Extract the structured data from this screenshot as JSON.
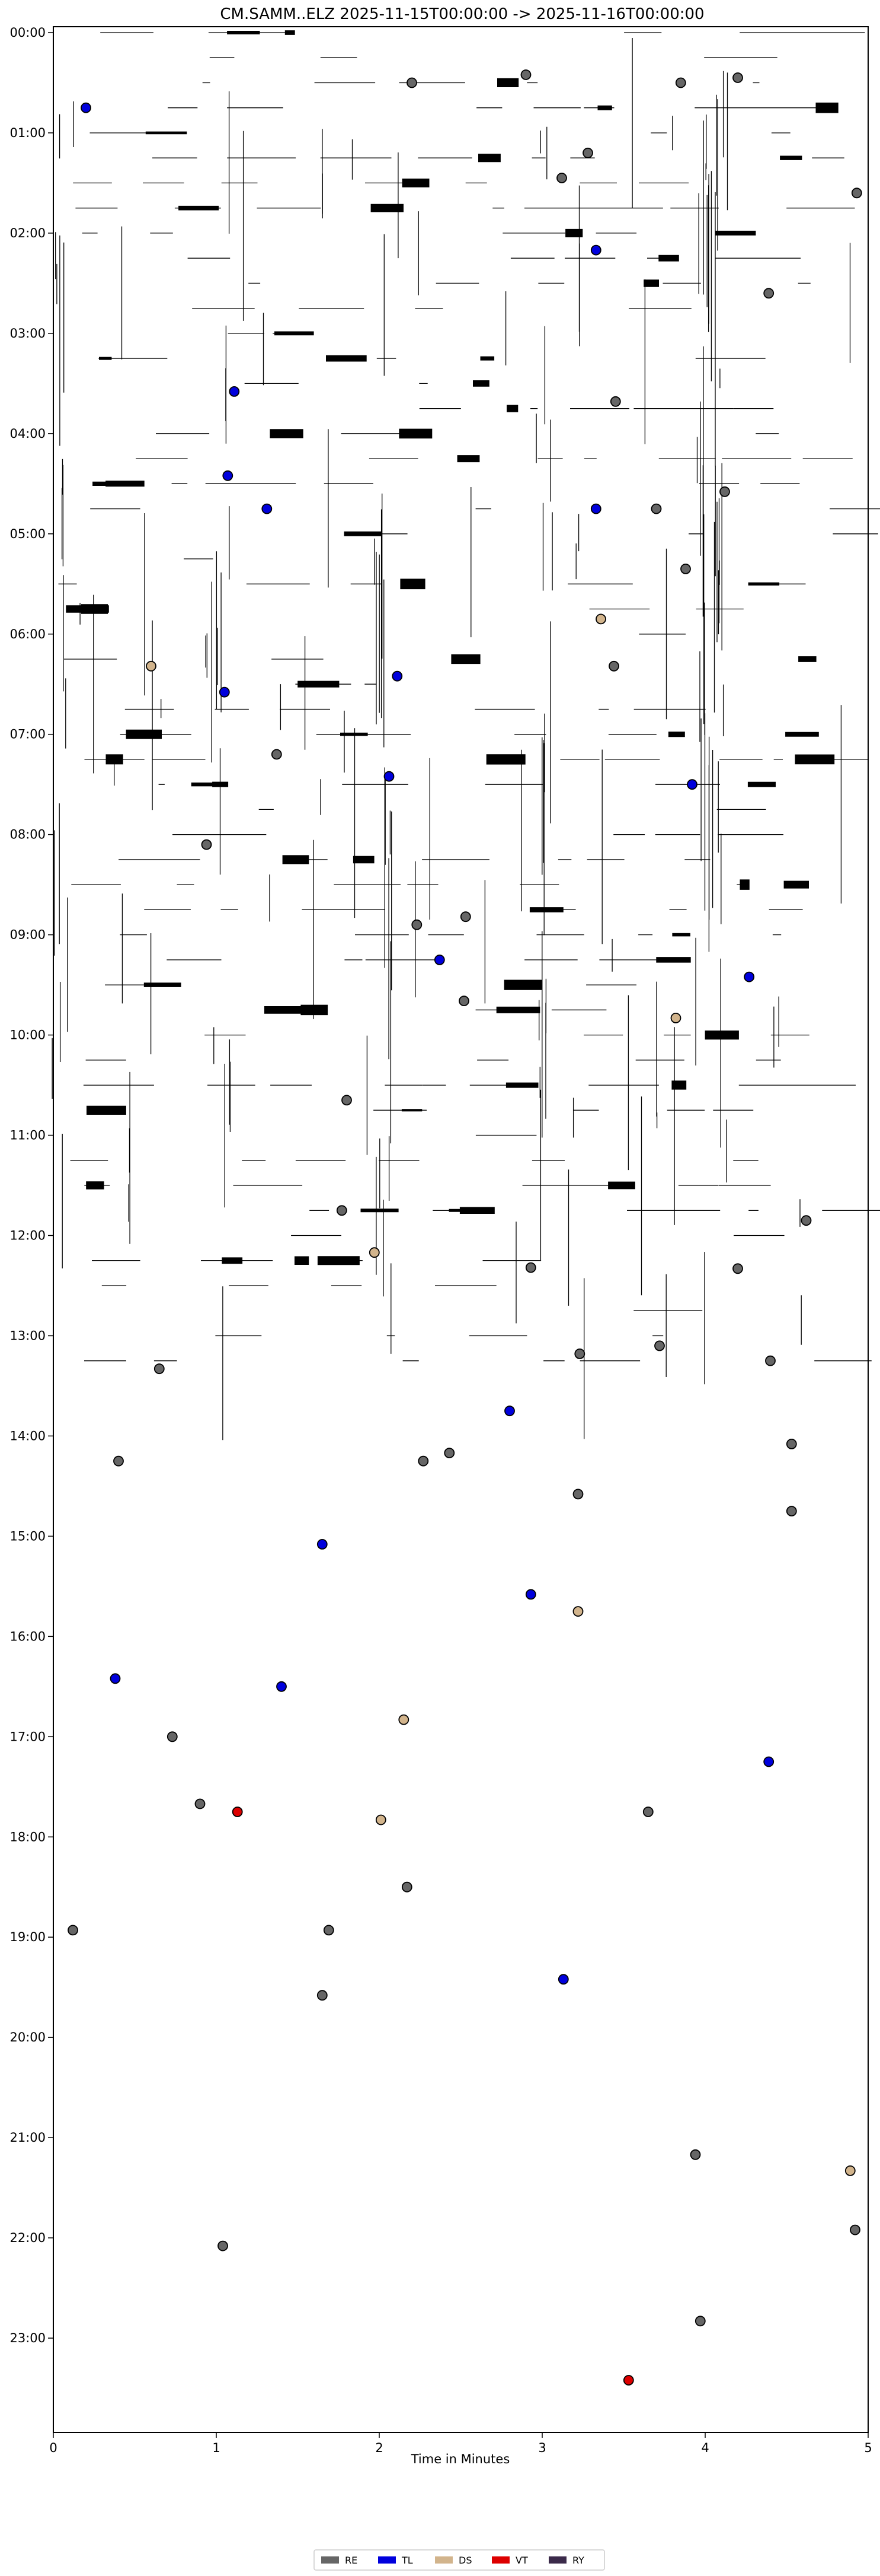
{
  "chart_data": {
    "type": "scatter",
    "title": "CM.SAMM..ELZ  2025-11-15T00:00:00 -> 2025-11-16T00:00:00",
    "xlabel": "Time in Minutes",
    "ylabel": "",
    "xlim": [
      0,
      5
    ],
    "ylim_hours": [
      0,
      24
    ],
    "y_inverted": true,
    "x_ticks": [
      "0",
      "1",
      "2",
      "3",
      "4",
      "5"
    ],
    "y_ticks": [
      "00:00",
      "01:00",
      "02:00",
      "03:00",
      "04:00",
      "05:00",
      "06:00",
      "07:00",
      "08:00",
      "09:00",
      "10:00",
      "11:00",
      "12:00",
      "13:00",
      "14:00",
      "15:00",
      "16:00",
      "17:00",
      "18:00",
      "19:00",
      "20:00",
      "21:00",
      "22:00",
      "23:00"
    ],
    "legend_position": "bottom-center",
    "legend": [
      {
        "label": "RE",
        "color": "#666666"
      },
      {
        "label": "TL",
        "color": "#0000dd"
      },
      {
        "label": "DS",
        "color": "#d2b48c"
      },
      {
        "label": "VT",
        "color": "#dd0000"
      },
      {
        "label": "RY",
        "color": "#3b2a4a"
      }
    ],
    "series": [
      {
        "name": "RE",
        "color": "#666666",
        "points": [
          {
            "x": 2.2,
            "y": 0.5
          },
          {
            "x": 2.9,
            "y": 0.42
          },
          {
            "x": 3.85,
            "y": 0.5
          },
          {
            "x": 4.2,
            "y": 0.45
          },
          {
            "x": 3.12,
            "y": 1.45
          },
          {
            "x": 3.28,
            "y": 1.2
          },
          {
            "x": 4.93,
            "y": 1.6
          },
          {
            "x": 4.39,
            "y": 2.6
          },
          {
            "x": 3.45,
            "y": 3.68
          },
          {
            "x": 4.12,
            "y": 4.58
          },
          {
            "x": 3.7,
            "y": 4.75
          },
          {
            "x": 3.88,
            "y": 5.35
          },
          {
            "x": 3.44,
            "y": 6.32
          },
          {
            "x": 1.37,
            "y": 7.2
          },
          {
            "x": 0.94,
            "y": 8.1
          },
          {
            "x": 2.23,
            "y": 8.9
          },
          {
            "x": 2.53,
            "y": 8.82
          },
          {
            "x": 2.52,
            "y": 9.66
          },
          {
            "x": 1.8,
            "y": 10.65
          },
          {
            "x": 1.77,
            "y": 11.75
          },
          {
            "x": 2.93,
            "y": 12.32
          },
          {
            "x": 4.62,
            "y": 11.85
          },
          {
            "x": 4.2,
            "y": 12.33
          },
          {
            "x": 0.65,
            "y": 13.33
          },
          {
            "x": 3.23,
            "y": 13.18
          },
          {
            "x": 3.72,
            "y": 13.1
          },
          {
            "x": 4.4,
            "y": 13.25
          },
          {
            "x": 0.4,
            "y": 14.25
          },
          {
            "x": 2.27,
            "y": 14.25
          },
          {
            "x": 2.43,
            "y": 14.17
          },
          {
            "x": 3.22,
            "y": 14.58
          },
          {
            "x": 4.53,
            "y": 14.08
          },
          {
            "x": 4.53,
            "y": 14.75
          },
          {
            "x": 0.73,
            "y": 17.0
          },
          {
            "x": 0.9,
            "y": 17.67
          },
          {
            "x": 3.65,
            "y": 17.75
          },
          {
            "x": 2.17,
            "y": 18.5
          },
          {
            "x": 0.12,
            "y": 18.93
          },
          {
            "x": 1.69,
            "y": 18.93
          },
          {
            "x": 1.65,
            "y": 19.58
          },
          {
            "x": 3.94,
            "y": 21.17
          },
          {
            "x": 4.92,
            "y": 21.92
          },
          {
            "x": 1.04,
            "y": 22.08
          },
          {
            "x": 3.97,
            "y": 22.83
          }
        ]
      },
      {
        "name": "TL",
        "color": "#0000dd",
        "points": [
          {
            "x": 0.2,
            "y": 0.75
          },
          {
            "x": 3.33,
            "y": 2.17
          },
          {
            "x": 1.11,
            "y": 3.58
          },
          {
            "x": 1.07,
            "y": 4.42
          },
          {
            "x": 1.31,
            "y": 4.75
          },
          {
            "x": 3.33,
            "y": 4.75
          },
          {
            "x": 2.11,
            "y": 6.42
          },
          {
            "x": 1.05,
            "y": 6.58
          },
          {
            "x": 2.06,
            "y": 7.42
          },
          {
            "x": 3.92,
            "y": 7.5
          },
          {
            "x": 2.37,
            "y": 9.25
          },
          {
            "x": 4.27,
            "y": 9.42
          },
          {
            "x": 2.8,
            "y": 13.75
          },
          {
            "x": 1.65,
            "y": 15.08
          },
          {
            "x": 2.93,
            "y": 15.58
          },
          {
            "x": 0.38,
            "y": 16.42
          },
          {
            "x": 1.4,
            "y": 16.5
          },
          {
            "x": 4.39,
            "y": 17.25
          },
          {
            "x": 3.13,
            "y": 19.42
          }
        ]
      },
      {
        "name": "DS",
        "color": "#d2b48c",
        "points": [
          {
            "x": 0.6,
            "y": 6.32
          },
          {
            "x": 3.36,
            "y": 5.85
          },
          {
            "x": 3.82,
            "y": 9.83
          },
          {
            "x": 1.97,
            "y": 12.17
          },
          {
            "x": 3.22,
            "y": 15.75
          },
          {
            "x": 2.15,
            "y": 16.83
          },
          {
            "x": 2.01,
            "y": 17.83
          },
          {
            "x": 4.89,
            "y": 21.33
          }
        ]
      },
      {
        "name": "VT",
        "color": "#dd0000",
        "points": [
          {
            "x": 1.13,
            "y": 17.75
          },
          {
            "x": 3.53,
            "y": 23.42
          }
        ]
      },
      {
        "name": "RY",
        "color": "#3b2a4a",
        "points": []
      }
    ]
  }
}
